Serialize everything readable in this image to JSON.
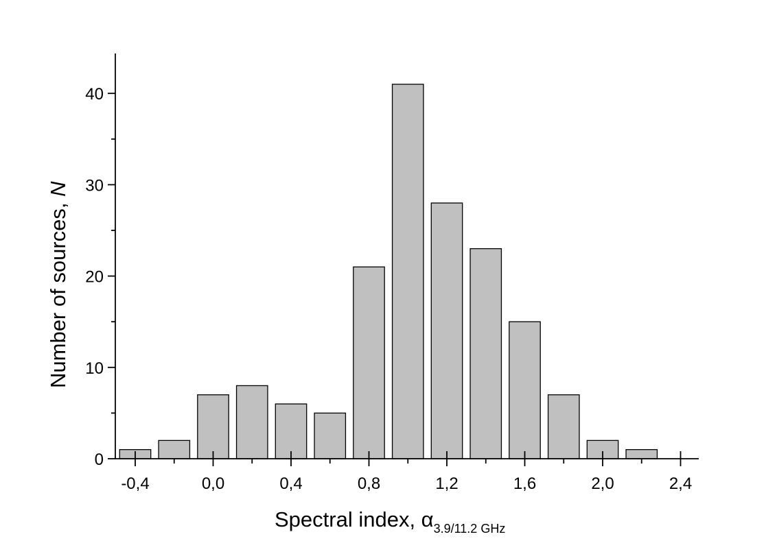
{
  "chart_data": {
    "type": "bar",
    "x": [
      -0.4,
      -0.2,
      0.0,
      0.2,
      0.4,
      0.6,
      0.8,
      1.0,
      1.2,
      1.4,
      1.6,
      1.8,
      2.0,
      2.2
    ],
    "values": [
      1,
      2,
      7,
      8,
      6,
      5,
      21,
      41,
      28,
      23,
      15,
      7,
      2,
      1
    ],
    "bin_width": 0.2,
    "xlim": [
      -0.5,
      2.5
    ],
    "ylim": [
      0,
      44
    ],
    "x_ticks": [
      -0.4,
      0.0,
      0.4,
      0.8,
      1.2,
      1.6,
      2.0,
      2.4
    ],
    "x_tick_labels": [
      "-0,4",
      "0,0",
      "0,4",
      "0,8",
      "1,2",
      "1,6",
      "2,0",
      "2,4"
    ],
    "y_ticks": [
      0,
      10,
      20,
      30,
      40
    ],
    "y_tick_labels": [
      "0",
      "10",
      "20",
      "30",
      "40"
    ],
    "xlabel": "Spectral index, ",
    "xlabel_symbol": "α",
    "xlabel_subscript": "3.9/11.2 GHz",
    "ylabel": "Number of sources, ",
    "ylabel_italic": "N",
    "grid": false,
    "colors": {
      "bar_fill": "#c0c0c0",
      "bar_stroke": "#000000"
    }
  }
}
